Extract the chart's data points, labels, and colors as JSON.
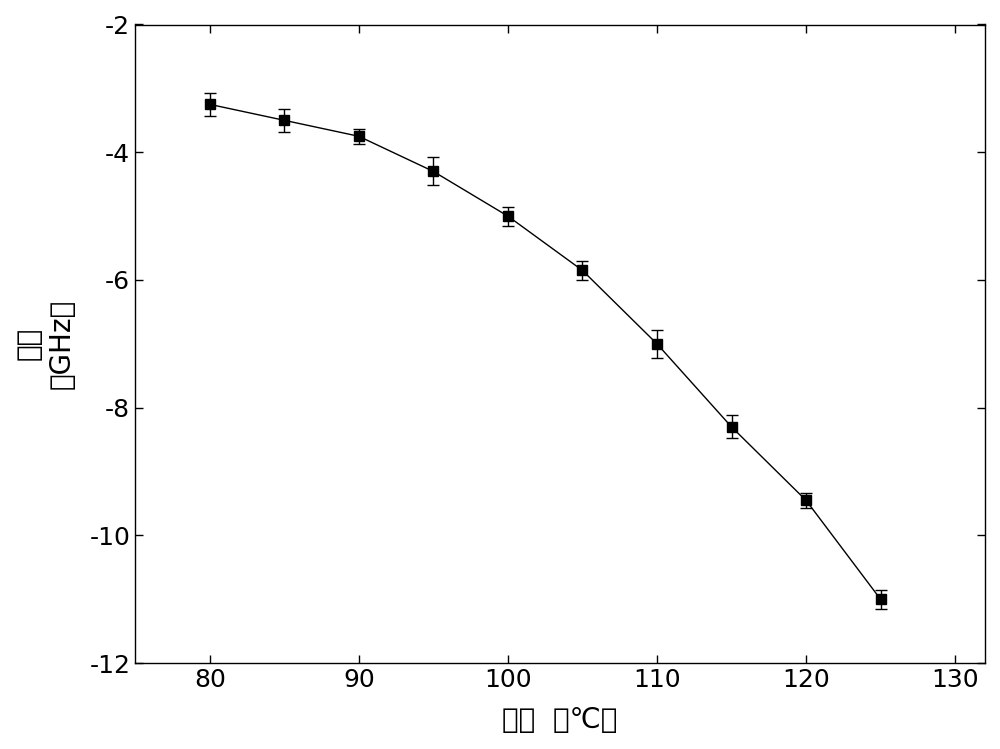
{
  "x": [
    80,
    85,
    90,
    95,
    100,
    105,
    110,
    115,
    120,
    125
  ],
  "y": [
    -3.25,
    -3.5,
    -3.75,
    -4.3,
    -5.0,
    -5.85,
    -7.0,
    -8.3,
    -9.45,
    -11.0
  ],
  "yerr": [
    0.18,
    0.18,
    0.12,
    0.22,
    0.15,
    0.15,
    0.22,
    0.18,
    0.12,
    0.15
  ],
  "xlim": [
    75,
    132
  ],
  "ylim": [
    -12,
    -2
  ],
  "xticks": [
    80,
    90,
    100,
    110,
    120,
    130
  ],
  "yticks": [
    -12,
    -10,
    -8,
    -6,
    -4,
    -2
  ],
  "xlabel_cn": "温度",
  "xlabel_unit": "（℃）",
  "ylabel_cn": "失谐",
  "ylabel_unit": "（GHz）",
  "line_color": "#000000",
  "marker_color": "black",
  "background_color": "#ffffff",
  "figsize": [
    10.0,
    7.49
  ],
  "dpi": 100
}
